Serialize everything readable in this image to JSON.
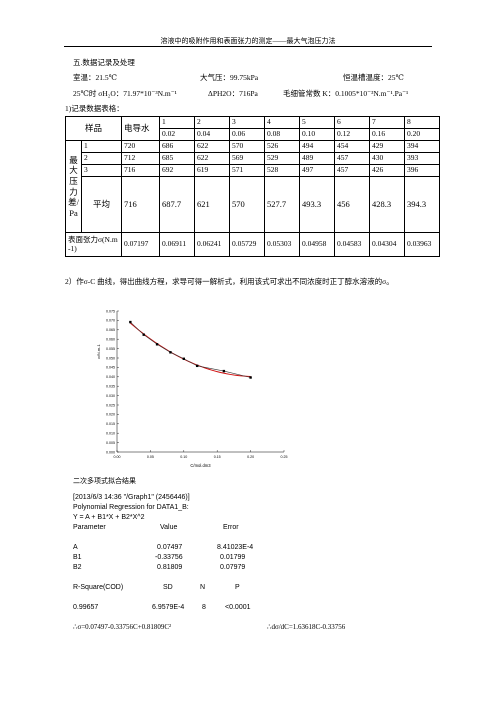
{
  "header": {
    "title": "溶液中的吸附作用和表面张力的测定——最大气泡压力法"
  },
  "section_title": "五.数据记录及处理",
  "conditions": {
    "room_temp": "室温：21.5℃",
    "pressure": "大气压：99.75kPa",
    "bath_temp": "恒温槽温度：25℃",
    "water_st": "25℃时 σH₂O：71.97*10⁻³N.m⁻¹",
    "delta_p": "ΔPH2O：716Pa",
    "capillary": "毛细管常数 K：0.1005*10⁻³N.m⁻¹.Pa⁻¹"
  },
  "table_caption": "1)记录数据表格：",
  "table": {
    "sample_label": "样品",
    "water_label": "电导水",
    "sample_numbers": [
      "1",
      "2",
      "3",
      "4",
      "5",
      "6",
      "7",
      "8"
    ],
    "concentrations": [
      "0.02",
      "0.04",
      "0.06",
      "0.08",
      "0.10",
      "0.12",
      "0.16",
      "0.20"
    ],
    "pressure_label": "最大压力差/Pa",
    "runs": [
      {
        "run": "1",
        "water": "720",
        "values": [
          "686",
          "622",
          "570",
          "526",
          "494",
          "454",
          "429",
          "394"
        ]
      },
      {
        "run": "2",
        "water": "712",
        "values": [
          "685",
          "622",
          "569",
          "529",
          "489",
          "457",
          "430",
          "393"
        ]
      },
      {
        "run": "3",
        "water": "716",
        "values": [
          "692",
          "619",
          "571",
          "528",
          "497",
          "457",
          "426",
          "396"
        ]
      }
    ],
    "avg_label": "平均",
    "avg": {
      "water": "716",
      "values": [
        "687.7",
        "621",
        "570",
        "527.7",
        "493.3",
        "456",
        "428.3",
        "394.3"
      ]
    },
    "st_label": "表面张力σ(N.m-1)",
    "st": {
      "water": "0.07197",
      "values": [
        "0.06911",
        "0.06241",
        "0.05729",
        "0.05303",
        "0.04958",
        "0.04583",
        "0.04304",
        "0.03963"
      ]
    }
  },
  "step2_text": "2）作σ-C 曲线，得出曲线方程，求导可得一解析式，利用该式可求出不同浓度时正丁醇水溶液的σ。",
  "chart_data": {
    "type": "scatter",
    "xlabel": "C/mol.dm3",
    "ylabel": "σ/N.m-1",
    "xlim": [
      0.0,
      0.25
    ],
    "ylim": [
      0.0,
      0.075
    ],
    "x_ticks": [
      "0.00",
      "0.05",
      "0.10",
      "0.15",
      "0.20",
      "0.25"
    ],
    "y_ticks": [
      "0.000",
      "0.005",
      "0.010",
      "0.015",
      "0.020",
      "0.025",
      "0.030",
      "0.035",
      "0.040",
      "0.045",
      "0.050",
      "0.055",
      "0.060",
      "0.065",
      "0.070",
      "0.075"
    ],
    "points": [
      {
        "x": 0.02,
        "y": 0.06911
      },
      {
        "x": 0.04,
        "y": 0.06241
      },
      {
        "x": 0.06,
        "y": 0.05729
      },
      {
        "x": 0.08,
        "y": 0.05303
      },
      {
        "x": 0.1,
        "y": 0.04958
      },
      {
        "x": 0.12,
        "y": 0.04583
      },
      {
        "x": 0.16,
        "y": 0.04304
      },
      {
        "x": 0.2,
        "y": 0.03963
      }
    ],
    "fit": {
      "a": 0.07497,
      "b1": -0.33756,
      "b2": 0.81809
    },
    "colors": {
      "points": "#000000",
      "line": "#333333",
      "fit": "#d01010"
    }
  },
  "fit_results": {
    "heading": "二次多项式拟合结果",
    "timestamp": "[2013/6/3 14:36 \"/Graph1\" (2456446)]",
    "regression": "Polynomial Regression for DATA1_B:",
    "equation": "Y = A + B1*X + B2*X^2",
    "col_param": "Parameter",
    "col_value": "Value",
    "col_error": "Error",
    "params": [
      {
        "name": "A",
        "value": "0.07497",
        "error": "8.41023E-4"
      },
      {
        "name": "B1",
        "value": "-0.33756",
        "error": "0.01799"
      },
      {
        "name": "B2",
        "value": "0.81809",
        "error": "0.07979"
      }
    ],
    "stat_headers": {
      "r": "R-Square(COD)",
      "sd": "SD",
      "n": "N",
      "p": "P"
    },
    "stats": {
      "r": "0.99657",
      "sd": "6.9579E-4",
      "n": "8",
      "p": "<0.0001"
    },
    "result_sigma": "∴σ=0.07497-0.33756C+0.81809C²",
    "result_deriv": "∴dσ/dC=1.63618C-0.33756"
  }
}
